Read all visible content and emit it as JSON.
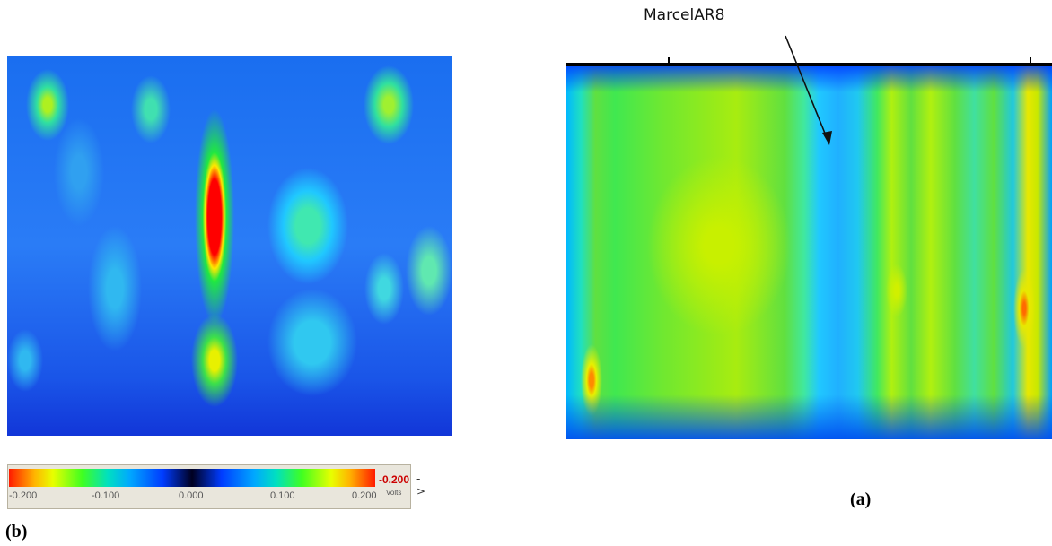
{
  "annotation": {
    "text": "MarcelAR8"
  },
  "labels": {
    "a": "(a)",
    "b": "(b)"
  },
  "colorbar": {
    "title": "-0.200",
    "arrow": "->",
    "unit": "Volts",
    "ticks": [
      "-0.200",
      "-0.100",
      "0.000",
      "0.100",
      "0.200"
    ]
  },
  "colors": {
    "hot": "#ff0000",
    "warm": "#e8ff00",
    "mid": "#40e850",
    "cool": "#00a8ff",
    "cold": "#003cff"
  }
}
